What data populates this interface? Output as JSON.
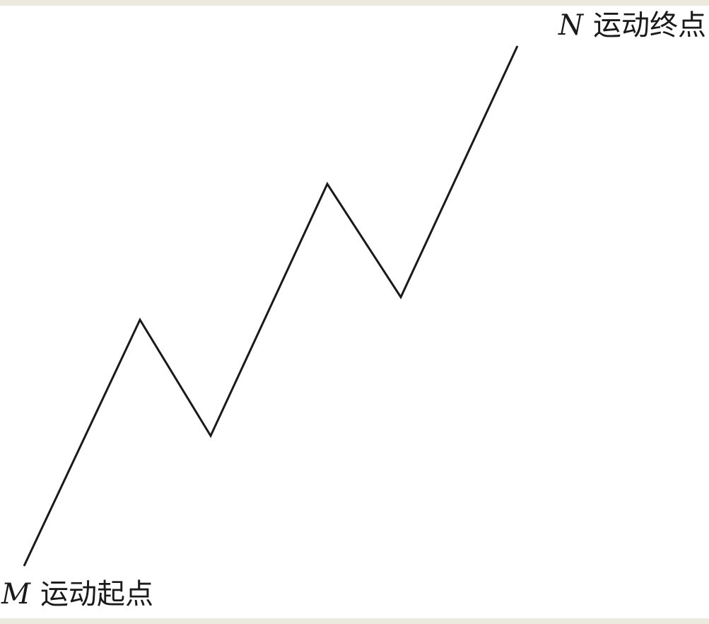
{
  "diagram": {
    "start_point": {
      "letter": "M",
      "caption": "运动起点"
    },
    "end_point": {
      "letter": "N",
      "caption": "运动终点"
    },
    "path_color": "#1a1a1a",
    "background_color": "#ffffff"
  }
}
